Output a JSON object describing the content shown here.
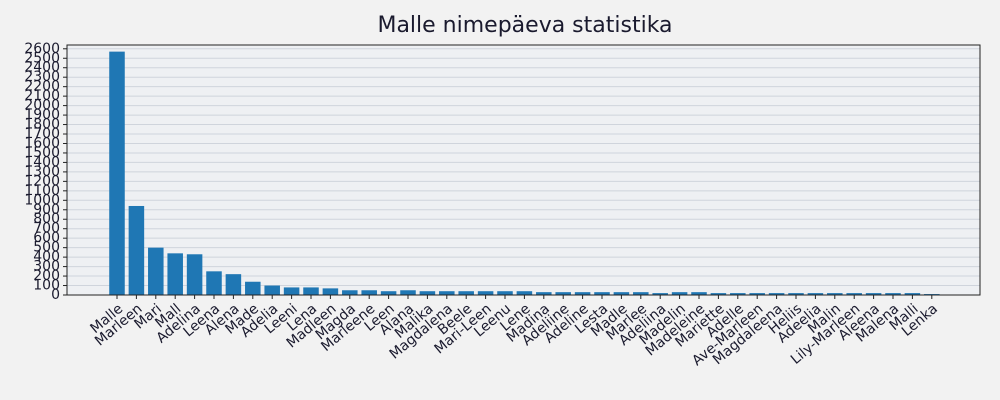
{
  "chart_data": {
    "type": "bar",
    "title": "Malle nimepäeva statistika",
    "categories": [
      "Malle",
      "Marleen",
      "Mari",
      "Mall",
      "Adelina",
      "Leena",
      "Alena",
      "Made",
      "Adelia",
      "Leeni",
      "Lena",
      "Madleen",
      "Magda",
      "Marleene",
      "Leen",
      "Alana",
      "Malika",
      "Magdalena",
      "Beele",
      "Mari-Leen",
      "Leenu",
      "Lene",
      "Madina",
      "Adeliine",
      "Adeline",
      "Lesta",
      "Madle",
      "Marlee",
      "Adeliina",
      "Madelin",
      "Madeleine",
      "Mariette",
      "Adelle",
      "Ave-Marleen",
      "Magdaleena",
      "Heliis",
      "Adeelia",
      "Malin",
      "Lily-Marleen",
      "Aleena",
      "Malena",
      "Malli",
      "Lenka"
    ],
    "values": [
      2570,
      940,
      500,
      440,
      430,
      250,
      220,
      140,
      100,
      80,
      80,
      70,
      50,
      50,
      40,
      50,
      40,
      40,
      40,
      40,
      40,
      40,
      30,
      30,
      30,
      30,
      30,
      30,
      20,
      30,
      30,
      20,
      20,
      20,
      20,
      20,
      20,
      20,
      20,
      20,
      20,
      20,
      10
    ],
    "color": "#1f77b4",
    "ylim": [
      0,
      2640
    ],
    "yticks": [
      0,
      100,
      200,
      300,
      400,
      500,
      600,
      700,
      800,
      900,
      1000,
      1100,
      1200,
      1300,
      1400,
      1500,
      1600,
      1700,
      1800,
      1900,
      2000,
      2100,
      2200,
      2300,
      2400,
      2500,
      2600
    ],
    "grid": true
  }
}
